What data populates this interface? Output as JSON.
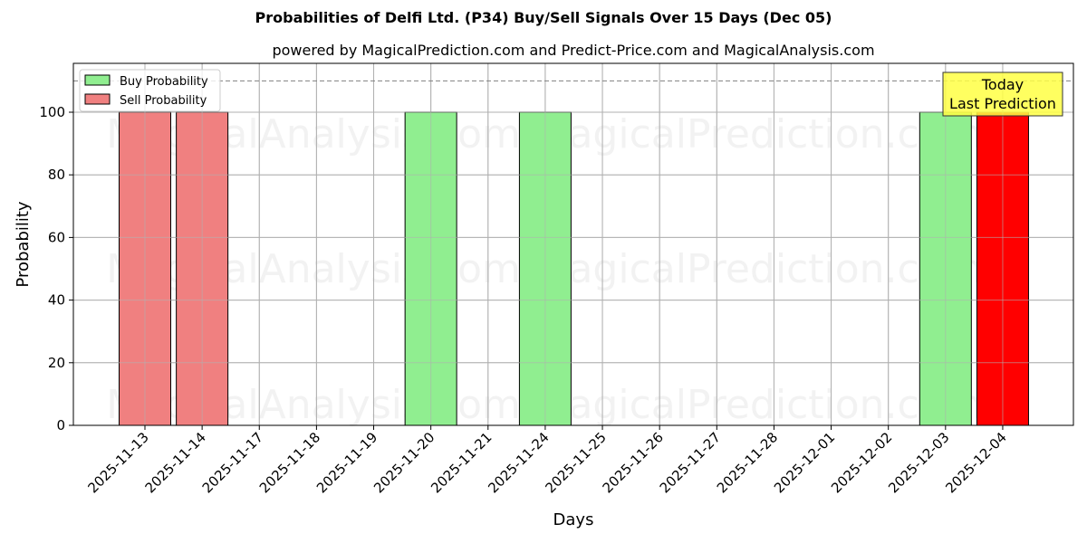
{
  "header": {
    "title": "Probabilities of Delfi Ltd. (P34) Buy/Sell Signals Over 15 Days (Dec 05)",
    "subtitle": "powered by MagicalPrediction.com and Predict-Price.com and MagicalAnalysis.com"
  },
  "legend": {
    "buy_label": "Buy Probability",
    "sell_label": "Sell Probability"
  },
  "annotation": {
    "line1": "Today",
    "line2": "Last Prediction"
  },
  "watermarks": [
    "MagicalAnalysis.com",
    "MagicalPrediction.com"
  ],
  "colors": {
    "buy": "#90ee90",
    "sell": "#f08080",
    "today_sell": "#ff0000",
    "annotation_bg": "#ffff44",
    "grid": "#b0b0b0"
  },
  "chart_data": {
    "type": "bar",
    "title": "Probabilities of Delfi Ltd. (P34) Buy/Sell Signals Over 15 Days (Dec 05)",
    "subtitle": "powered by MagicalPrediction.com and Predict-Price.com and MagicalAnalysis.com",
    "xlabel": "Days",
    "ylabel": "Probability",
    "ylim": [
      0,
      115
    ],
    "yticks": [
      0,
      20,
      40,
      60,
      80,
      100
    ],
    "grid": true,
    "legend_position": "upper left",
    "reference_line": {
      "y": 110,
      "style": "dashed",
      "color": "#808080"
    },
    "categories": [
      "2025-11-13",
      "2025-11-14",
      "2025-11-17",
      "2025-11-18",
      "2025-11-19",
      "2025-11-20",
      "2025-11-21",
      "2025-11-24",
      "2025-11-25",
      "2025-11-26",
      "2025-11-27",
      "2025-11-28",
      "2025-12-01",
      "2025-12-02",
      "2025-12-03",
      "2025-12-04"
    ],
    "series": [
      {
        "name": "Buy Probability",
        "color": "#90ee90",
        "values": [
          0,
          0,
          0,
          0,
          0,
          100,
          0,
          100,
          0,
          0,
          0,
          0,
          0,
          0,
          100,
          0
        ]
      },
      {
        "name": "Sell Probability",
        "color": "#f08080",
        "values": [
          100,
          100,
          0,
          0,
          0,
          0,
          0,
          0,
          0,
          0,
          0,
          0,
          0,
          0,
          0,
          100
        ]
      }
    ],
    "highlight": {
      "category": "2025-12-04",
      "series": "Sell Probability",
      "color": "#ff0000",
      "annotation": "Today\nLast Prediction"
    }
  }
}
